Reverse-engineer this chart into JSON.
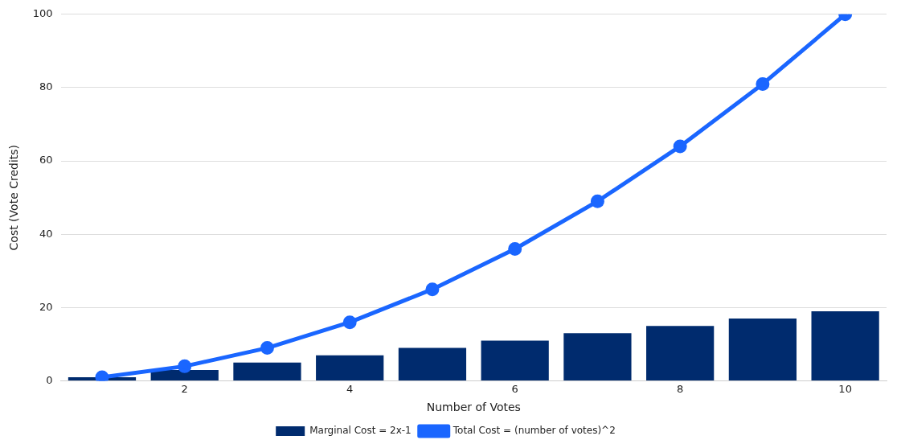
{
  "chart_data": {
    "type": "bar",
    "xlabel": "Number of Votes",
    "ylabel": "Cost (Vote Credits)",
    "categories": [
      null,
      "2",
      null,
      "4",
      null,
      "6",
      null,
      "8",
      null,
      "10"
    ],
    "series": [
      {
        "name": "Marginal Cost = 2x-1",
        "color": "#002b6e",
        "values": [
          1,
          3,
          5,
          7,
          9,
          11,
          13,
          15,
          17,
          19
        ]
      },
      {
        "name": "Total Cost = (number of votes)^2",
        "type": "line",
        "color": "#1a66ff",
        "values": [
          1,
          4,
          9,
          16,
          25,
          36,
          49,
          64,
          81,
          100
        ]
      }
    ],
    "ylim": [
      0,
      100
    ],
    "yticks": [
      0,
      20,
      40,
      60,
      80,
      100
    ],
    "grid": "y",
    "legend": "bottom",
    "marker": "circle",
    "line_style": "solid"
  }
}
